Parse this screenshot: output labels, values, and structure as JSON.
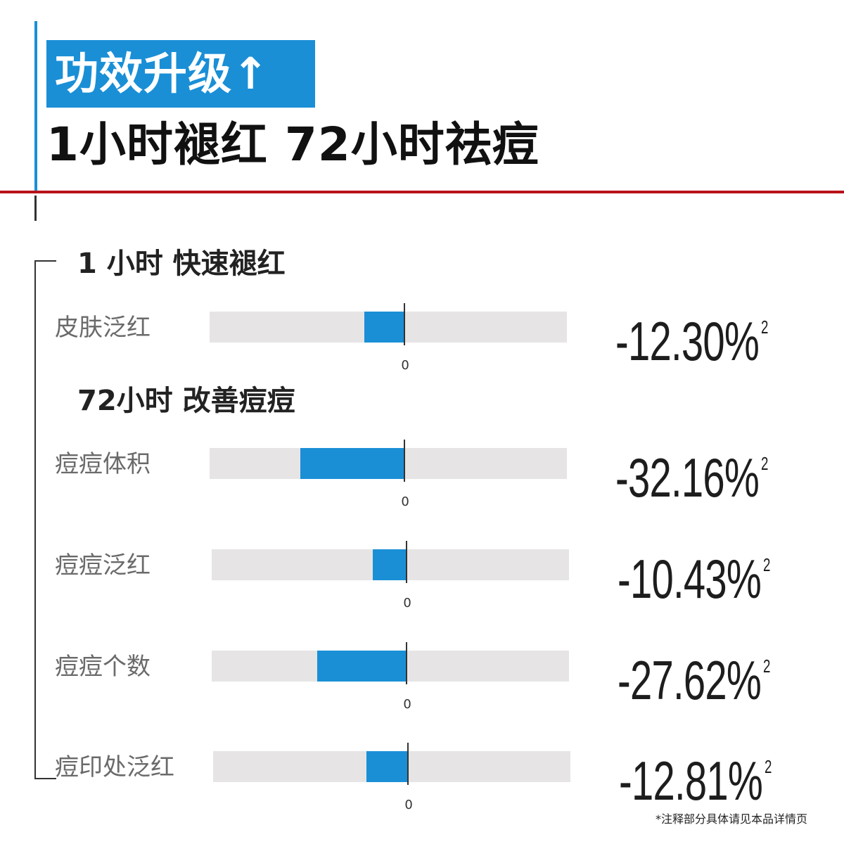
{
  "header": {
    "badge": "功效升级↑",
    "headline": "1小时褪红 72小时祛痘"
  },
  "sections": [
    {
      "title": "1 小时 快速褪红"
    },
    {
      "title": "72小时 改善痘痘"
    }
  ],
  "chart_data": {
    "type": "bar",
    "orientation": "horizontal",
    "categories": [
      "皮肤泛红",
      "痘痘体积",
      "痘痘泛红",
      "痘痘个数",
      "痘印处泛红"
    ],
    "values": [
      -12.3,
      -32.16,
      -10.43,
      -27.62,
      -12.81
    ],
    "value_labels": [
      "-12.30%",
      "-32.16%",
      "-10.43%",
      "-27.62%",
      "-12.81%"
    ],
    "superscript": "2",
    "zero_label": "0",
    "xlim": [
      -60,
      50
    ],
    "colors": {
      "bar": "#1a8fd6",
      "track": "#e6e4e4",
      "accent_line": "#b8121a"
    }
  },
  "footnote": "*注释部分具体请见本品详情页"
}
